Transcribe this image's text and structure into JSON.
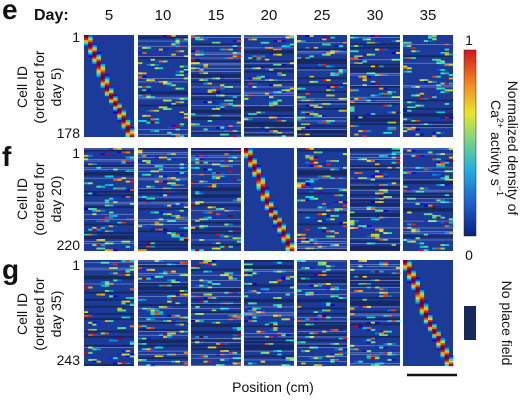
{
  "chart_data": {
    "type": "heatmap",
    "header_label": "Day:",
    "days": [
      "5",
      "10",
      "15",
      "20",
      "25",
      "30",
      "35"
    ],
    "panels": [
      {
        "letter": "e",
        "ylabel_lines": [
          "Cell ID",
          "(ordered for",
          "day 5)"
        ],
        "row_start": "1",
        "row_end": "178",
        "n_cells": 178,
        "ordered_day": "5",
        "ordered_col_index": 0
      },
      {
        "letter": "f",
        "ylabel_lines": [
          "Cell ID",
          "(ordered for",
          "day 20)"
        ],
        "row_start": "1",
        "row_end": "220",
        "n_cells": 220,
        "ordered_day": "20",
        "ordered_col_index": 3
      },
      {
        "letter": "g",
        "ylabel_lines": [
          "Cell ID",
          "(ordered for",
          "day 35)"
        ],
        "row_start": "1",
        "row_end": "243",
        "n_cells": 243,
        "ordered_day": "35",
        "ordered_col_index": 6
      }
    ],
    "xlabel": "Position (cm)",
    "colorbar": {
      "label_line1": "Normalized density of",
      "label_line2_base": "Ca",
      "label_line2_sup": "2+",
      "label_line2_rest": " activity s",
      "label_line2_exp": "−1",
      "max_label": "1",
      "min_label": "0",
      "range": [
        0,
        1
      ],
      "colormap": "jet"
    },
    "no_field_legend": {
      "label": "No place field",
      "color": "#16285e"
    },
    "scale_bar": {
      "visible": true
    },
    "colors": {
      "background_low": "#1c3a98",
      "peak": "#e8321d",
      "no_field": "#16285e"
    }
  }
}
